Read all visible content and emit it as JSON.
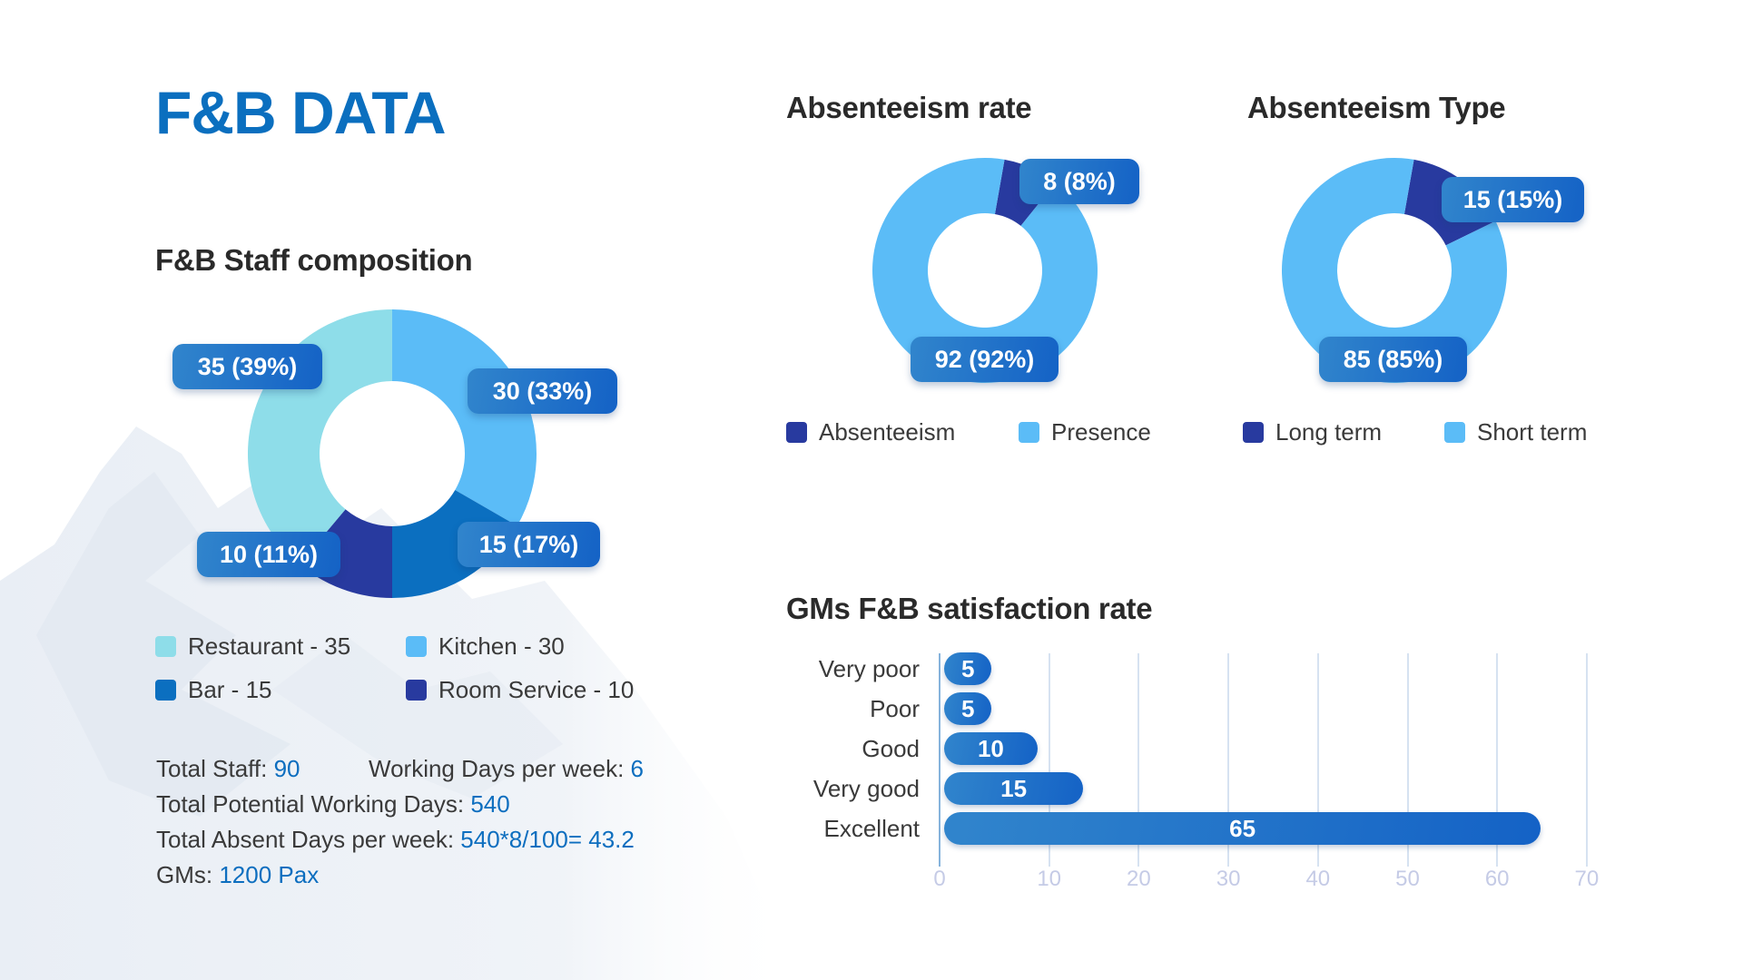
{
  "page": {
    "title": "F&B DATA"
  },
  "colors": {
    "title_blue": "#0b6fbf",
    "restaurant": "#8edde9",
    "kitchen": "#5bbcf7",
    "bar": "#0b6fc0",
    "room_service": "#283a9f",
    "absenteeism": "#283a9f",
    "presence": "#5bbcf7",
    "long_term": "#283a9f",
    "short_term": "#5bbcf7",
    "value_blue": "#0d6ebf"
  },
  "staff_composition": {
    "title": "F&B Staff composition",
    "legend": [
      {
        "label": "Restaurant - 35"
      },
      {
        "label": "Kitchen - 30"
      },
      {
        "label": "Bar - 15"
      },
      {
        "label": "Room Service - 10"
      }
    ],
    "callouts": {
      "restaurant": "35 (39%)",
      "kitchen": "30 (33%)",
      "bar": "15 (17%)",
      "room_service": "10 (11%)"
    }
  },
  "info": {
    "total_staff_label": "Total Staff: ",
    "total_staff_value": "90",
    "working_days_label": "Working Days per week: ",
    "working_days_value": "6",
    "potential_days_label": "Total Potential Working Days: ",
    "potential_days_value": "540",
    "absent_days_label": "Total Absent Days per week: ",
    "absent_days_value": "540*8/100= 43.2",
    "gms_label": "GMs: ",
    "gms_value": "1200 Pax"
  },
  "absenteeism_rate": {
    "title": "Absenteeism rate",
    "callouts": {
      "absenteeism": "8 (8%)",
      "presence": "92 (92%)"
    },
    "legend": [
      {
        "label": "Absenteeism"
      },
      {
        "label": "Presence"
      }
    ]
  },
  "absenteeism_type": {
    "title": "Absenteeism Type",
    "callouts": {
      "long_term": "15 (15%)",
      "short_term": "85 (85%)"
    },
    "legend": [
      {
        "label": "Long term"
      },
      {
        "label": "Short term"
      }
    ]
  },
  "satisfaction": {
    "title": "GMs F&B satisfaction rate"
  },
  "chart_data": [
    {
      "type": "pie",
      "variant": "donut",
      "title": "F&B Staff composition",
      "categories": [
        "Kitchen",
        "Bar",
        "Room Service",
        "Restaurant"
      ],
      "values": [
        30,
        15,
        10,
        35
      ],
      "percent_labels": [
        "33%",
        "17%",
        "11%",
        "39%"
      ],
      "legend": [
        "Restaurant - 35",
        "Kitchen - 30",
        "Bar - 15",
        "Room Service - 10"
      ],
      "legend_placement": "bottom",
      "start": "top",
      "direction": "clockwise"
    },
    {
      "type": "pie",
      "variant": "donut",
      "title": "Absenteeism rate",
      "categories": [
        "Absenteeism",
        "Presence"
      ],
      "values": [
        8,
        92
      ],
      "percent_labels": [
        "8%",
        "92%"
      ],
      "legend": [
        "Absenteeism",
        "Presence"
      ],
      "legend_placement": "bottom"
    },
    {
      "type": "pie",
      "variant": "donut",
      "title": "Absenteeism Type",
      "categories": [
        "Long term",
        "Short term"
      ],
      "values": [
        15,
        85
      ],
      "percent_labels": [
        "15%",
        "85%"
      ],
      "legend": [
        "Long term",
        "Short term"
      ],
      "legend_placement": "bottom"
    },
    {
      "type": "bar",
      "orientation": "horizontal",
      "title": "GMs F&B satisfaction rate",
      "categories": [
        "Very poor",
        "Poor",
        "Good",
        "Very good",
        "Excellent"
      ],
      "values": [
        5,
        5,
        10,
        15,
        65
      ],
      "xlim": [
        0,
        70
      ],
      "xticks": [
        0,
        10,
        20,
        30,
        40,
        50,
        60,
        70
      ],
      "grid": true,
      "xlabel": "",
      "ylabel": ""
    }
  ]
}
